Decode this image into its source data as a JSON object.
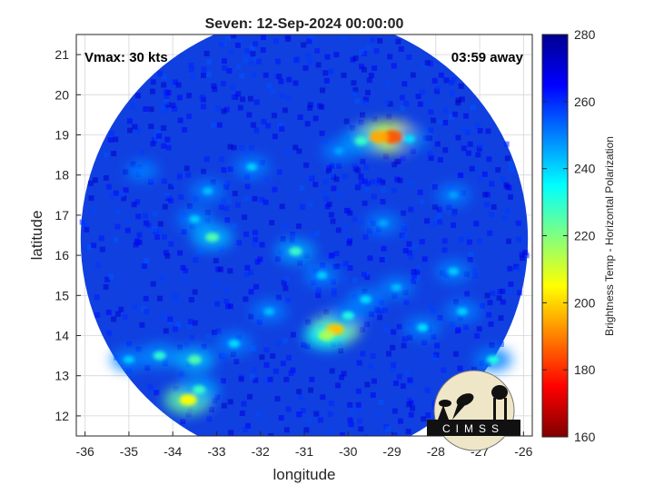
{
  "title": "Seven: 12-Sep-2024 00:00:00",
  "annotations": {
    "vmax": "Vmax: 30 kts",
    "time_away": "03:59 away"
  },
  "axes": {
    "xlabel": "longitude",
    "ylabel": "latitude",
    "xticks": [
      "-36",
      "-35",
      "-34",
      "-33",
      "-32",
      "-31",
      "-30",
      "-29",
      "-28",
      "-27",
      "-26"
    ],
    "yticks": [
      "12",
      "13",
      "14",
      "15",
      "16",
      "17",
      "18",
      "19",
      "20",
      "21"
    ],
    "xlim": [
      -36.2,
      -25.8
    ],
    "ylim": [
      11.5,
      21.5
    ],
    "grid": true
  },
  "colorbar": {
    "label": "Brightness Temp - Horizontal Polarization",
    "ticks": [
      "280",
      "260",
      "240",
      "220",
      "200",
      "180",
      "160"
    ],
    "range": [
      160,
      280
    ],
    "colormap": "jet",
    "colors": [
      "#800000",
      "#ff0000",
      "#ff8000",
      "#ffff00",
      "#80ff80",
      "#00ffff",
      "#0080ff",
      "#0000ff",
      "#00008f"
    ]
  },
  "logo": {
    "text": "CIMSS"
  },
  "map": {
    "background_color": "#1040e0",
    "swath_center": [
      -31.0,
      16.4
    ],
    "swath_radius_deg": 5.1,
    "features": [
      {
        "lon": -29.0,
        "lat": 18.95,
        "temp": 185
      },
      {
        "lon": -29.3,
        "lat": 18.95,
        "temp": 195
      },
      {
        "lon": -29.7,
        "lat": 18.85,
        "temp": 228
      },
      {
        "lon": -28.6,
        "lat": 18.9,
        "temp": 238
      },
      {
        "lon": -30.2,
        "lat": 18.6,
        "temp": 245
      },
      {
        "lon": -32.2,
        "lat": 18.2,
        "temp": 240
      },
      {
        "lon": -33.2,
        "lat": 17.6,
        "temp": 242
      },
      {
        "lon": -33.5,
        "lat": 16.9,
        "temp": 240
      },
      {
        "lon": -33.1,
        "lat": 16.45,
        "temp": 225
      },
      {
        "lon": -31.2,
        "lat": 16.1,
        "temp": 228
      },
      {
        "lon": -30.6,
        "lat": 15.5,
        "temp": 240
      },
      {
        "lon": -30.3,
        "lat": 14.15,
        "temp": 198
      },
      {
        "lon": -30.5,
        "lat": 14.0,
        "temp": 215
      },
      {
        "lon": -30.0,
        "lat": 14.5,
        "temp": 232
      },
      {
        "lon": -29.6,
        "lat": 14.9,
        "temp": 238
      },
      {
        "lon": -28.9,
        "lat": 15.2,
        "temp": 242
      },
      {
        "lon": -27.6,
        "lat": 15.6,
        "temp": 240
      },
      {
        "lon": -28.3,
        "lat": 14.2,
        "temp": 238
      },
      {
        "lon": -27.4,
        "lat": 14.6,
        "temp": 240
      },
      {
        "lon": -26.7,
        "lat": 13.4,
        "temp": 232
      },
      {
        "lon": -33.65,
        "lat": 12.4,
        "temp": 205
      },
      {
        "lon": -33.4,
        "lat": 12.65,
        "temp": 228
      },
      {
        "lon": -34.3,
        "lat": 13.5,
        "temp": 230
      },
      {
        "lon": -33.5,
        "lat": 13.4,
        "temp": 225
      },
      {
        "lon": -35.0,
        "lat": 13.4,
        "temp": 240
      },
      {
        "lon": -32.6,
        "lat": 13.8,
        "temp": 238
      },
      {
        "lon": -31.8,
        "lat": 14.6,
        "temp": 242
      },
      {
        "lon": -29.2,
        "lat": 16.8,
        "temp": 245
      },
      {
        "lon": -27.6,
        "lat": 17.5,
        "temp": 246
      },
      {
        "lon": -34.7,
        "lat": 18.1,
        "temp": 252
      }
    ]
  }
}
